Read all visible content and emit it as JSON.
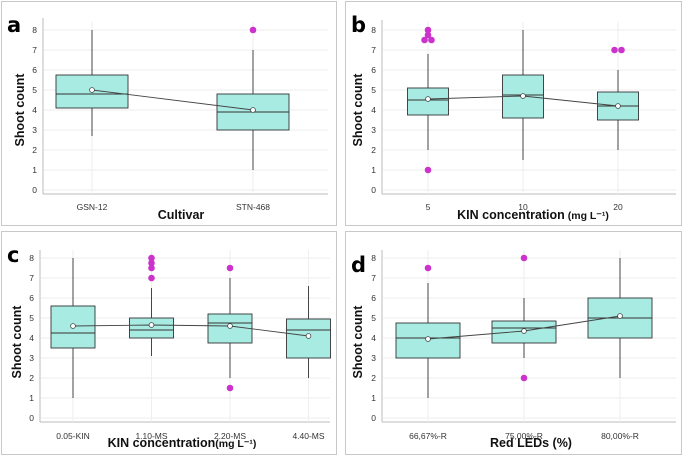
{
  "colors": {
    "box": "#a8ebe2",
    "box_stroke": "#333333",
    "outlier": "#cc33cc",
    "mean_line": "#444444",
    "grid": "#eeeeee"
  },
  "chart_data": [
    {
      "panel": "a",
      "type": "box",
      "ylabel": "Shoot count",
      "xlabel": "Cultivar",
      "xlabel_unit": "",
      "ylim": [
        0,
        8
      ],
      "yticks": [
        0,
        1,
        2,
        3,
        4,
        5,
        6,
        7,
        8
      ],
      "categories": [
        "GSN-12",
        "STN-468"
      ],
      "boxes": [
        {
          "min": 2.7,
          "q1": 4.1,
          "median": 4.8,
          "q3": 5.75,
          "max": 8,
          "mean": 5.0,
          "outliers": []
        },
        {
          "min": 1.0,
          "q1": 3.0,
          "median": 3.9,
          "q3": 4.8,
          "max": 7,
          "mean": 4.0,
          "outliers": [
            8
          ]
        }
      ]
    },
    {
      "panel": "b",
      "type": "box",
      "ylabel": "Shoot count",
      "xlabel": "KIN concentration",
      "xlabel_unit": " (mg L⁻¹)",
      "ylim": [
        0,
        8
      ],
      "yticks": [
        0,
        1,
        2,
        3,
        4,
        5,
        6,
        7,
        8
      ],
      "categories": [
        "5",
        "10",
        "20"
      ],
      "boxes": [
        {
          "min": 2.0,
          "q1": 3.75,
          "median": 4.5,
          "q3": 5.1,
          "max": 6.8,
          "mean": 4.55,
          "outliers": [
            1,
            7.5,
            7.5,
            7.75,
            8
          ]
        },
        {
          "min": 1.5,
          "q1": 3.6,
          "median": 4.75,
          "q3": 5.75,
          "max": 8,
          "mean": 4.7,
          "outliers": []
        },
        {
          "min": 2.0,
          "q1": 3.5,
          "median": 4.2,
          "q3": 4.9,
          "max": 6.0,
          "mean": 4.2,
          "outliers": [
            7,
            7
          ]
        }
      ]
    },
    {
      "panel": "c",
      "type": "box",
      "ylabel": "Shoot count",
      "xlabel": "KIN concentration",
      "xlabel_unit": "(mg L⁻¹)",
      "ylim": [
        0,
        8
      ],
      "yticks": [
        0,
        1,
        2,
        3,
        4,
        5,
        6,
        7,
        8
      ],
      "categories": [
        "0.05-KIN",
        "1.10-MS",
        "2.20-MS",
        "4.40-MS"
      ],
      "boxes": [
        {
          "min": 1.0,
          "q1": 3.5,
          "median": 4.25,
          "q3": 5.6,
          "max": 8,
          "mean": 4.6,
          "outliers": []
        },
        {
          "min": 3.1,
          "q1": 4.0,
          "median": 4.4,
          "q3": 5.0,
          "max": 6.5,
          "mean": 4.65,
          "outliers": [
            7,
            7.5,
            7.75,
            8
          ]
        },
        {
          "min": 2.0,
          "q1": 3.75,
          "median": 4.75,
          "q3": 5.2,
          "max": 7.0,
          "mean": 4.6,
          "outliers": [
            1.5,
            7.5
          ]
        },
        {
          "min": 2.0,
          "q1": 3.0,
          "median": 4.4,
          "q3": 4.95,
          "max": 6.6,
          "mean": 4.1,
          "outliers": []
        }
      ]
    },
    {
      "panel": "d",
      "type": "box",
      "ylabel": "Shoot count",
      "xlabel": "Red LEDs (%)",
      "xlabel_unit": "",
      "ylim": [
        0,
        8
      ],
      "yticks": [
        0,
        1,
        2,
        3,
        4,
        5,
        6,
        7,
        8
      ],
      "categories": [
        "66,67%-R",
        "75,00%-R",
        "80,00%-R"
      ],
      "boxes": [
        {
          "min": 1.0,
          "q1": 3.0,
          "median": 4.0,
          "q3": 4.75,
          "max": 6.75,
          "mean": 3.95,
          "outliers": [
            7.5
          ]
        },
        {
          "min": 3.0,
          "q1": 3.75,
          "median": 4.5,
          "q3": 4.85,
          "max": 6.0,
          "mean": 4.35,
          "outliers": [
            2,
            8
          ]
        },
        {
          "min": 2.0,
          "q1": 4.0,
          "median": 5.0,
          "q3": 6.0,
          "max": 8,
          "mean": 5.1,
          "outliers": []
        }
      ]
    }
  ]
}
